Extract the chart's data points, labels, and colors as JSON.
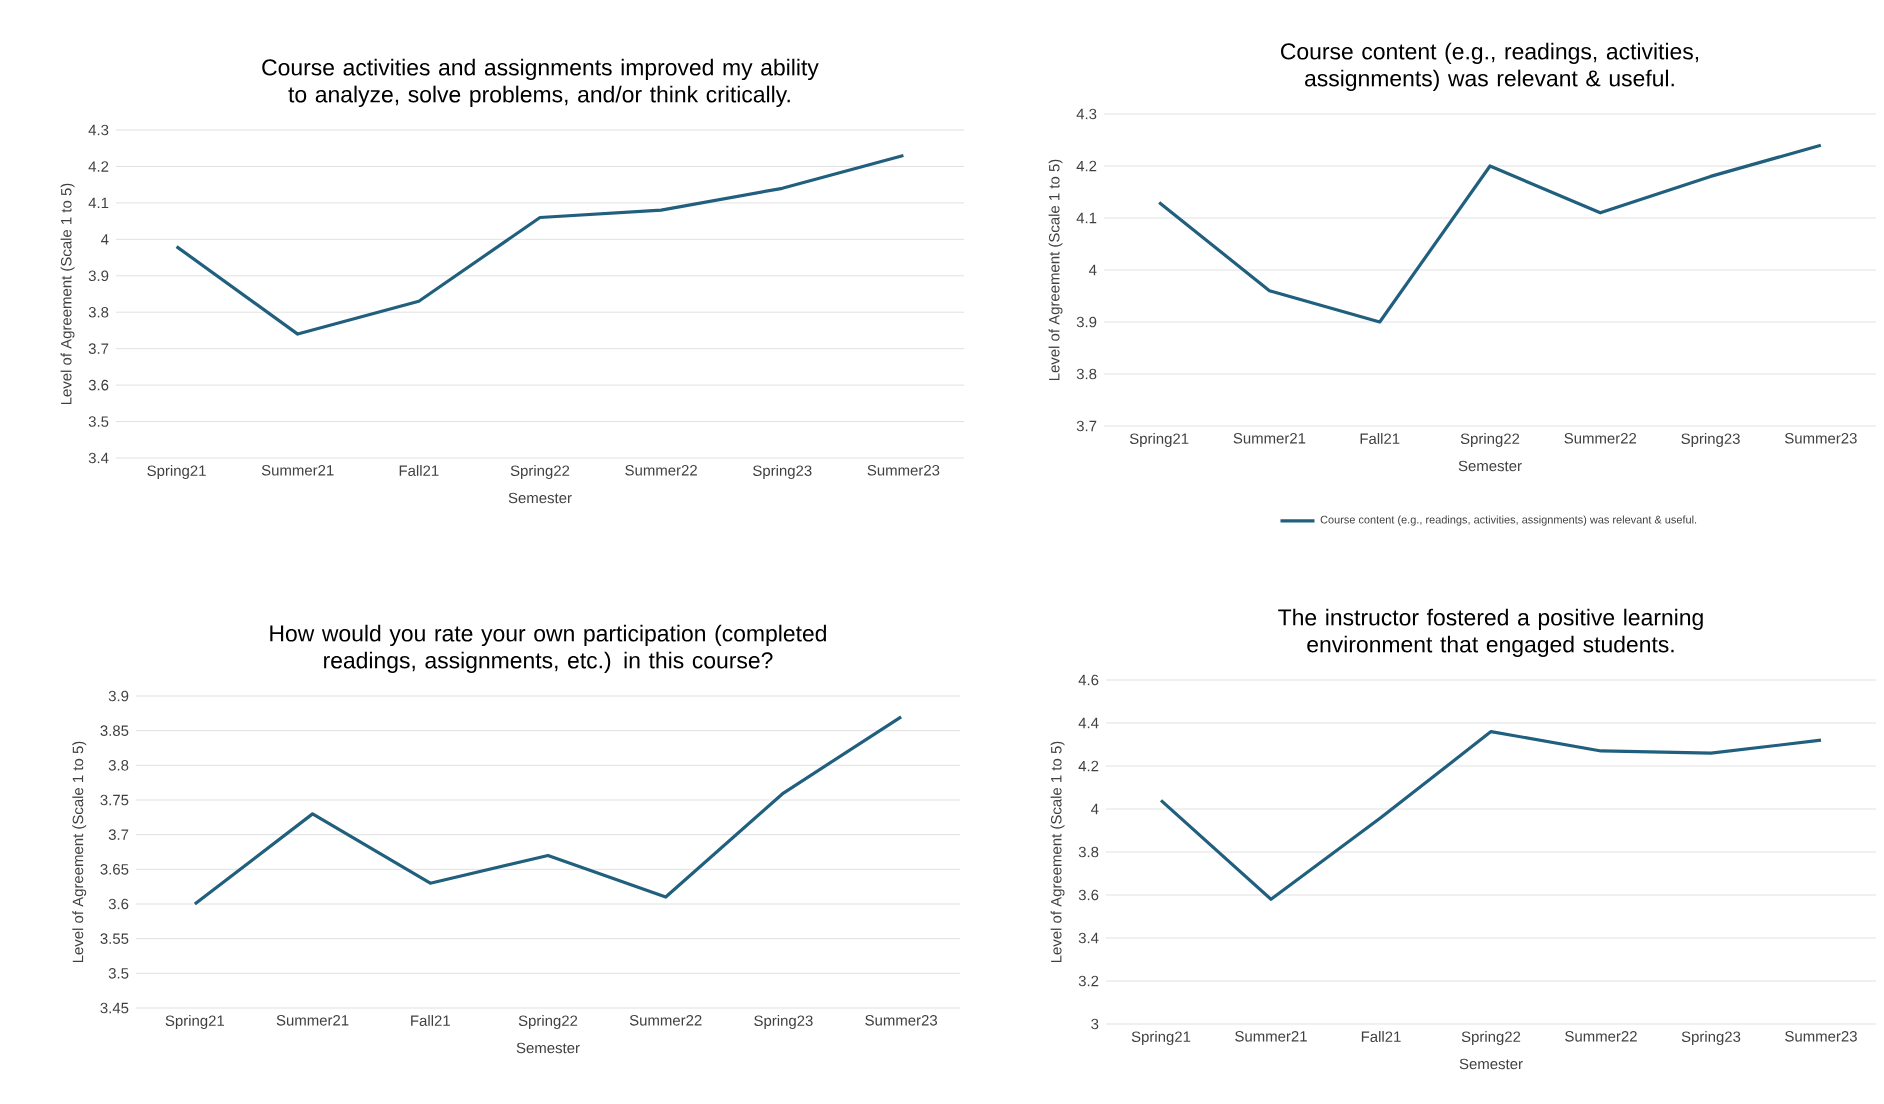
{
  "chart_data": [
    {
      "type": "line",
      "title": "Course activities and assignments improved my ability to analyze, solve problems, and/or think critically.",
      "xlabel": "Semester",
      "ylabel": "Level of Agreement (Scale 1 to 5)",
      "categories": [
        "Spring21",
        "Summer21",
        "Fall21",
        "Spring22",
        "Summer22",
        "Spring23",
        "Summer23"
      ],
      "series": [
        {
          "color": "#215f7e",
          "values": [
            3.98,
            3.74,
            3.83,
            4.06,
            4.08,
            4.14,
            4.23
          ]
        }
      ],
      "ylim": [
        3.4,
        4.3
      ],
      "yticks": [
        3.4,
        3.5,
        3.6,
        3.7,
        3.8,
        3.9,
        4,
        4.1,
        4.2,
        4.3
      ],
      "grid": "y"
    },
    {
      "type": "line",
      "title": "Course content (e.g., readings, activities, assignments) was relevant & useful.",
      "xlabel": "Semester",
      "ylabel": "Level of Agreement (Scale 1 to 5)",
      "categories": [
        "Spring21",
        "Summer21",
        "Fall21",
        "Spring22",
        "Summer22",
        "Spring23",
        "Summer23"
      ],
      "series": [
        {
          "name": "Course content (e.g., readings, activities, assignments) was relevant & useful.",
          "color": "#215f7e",
          "values": [
            4.13,
            3.96,
            3.9,
            4.2,
            4.11,
            4.18,
            4.24
          ]
        }
      ],
      "ylim": [
        3.7,
        4.3
      ],
      "yticks": [
        3.7,
        3.8,
        3.9,
        4,
        4.1,
        4.2,
        4.3
      ],
      "grid": "y",
      "legend": "bottom"
    },
    {
      "type": "line",
      "title": "How would you rate your own participation (completed readings, assignments, etc.) in this course?",
      "xlabel": "Semester",
      "ylabel": "Level of Agreement (Scale 1 to 5)",
      "categories": [
        "Spring21",
        "Summer21",
        "Fall21",
        "Spring22",
        "Summer22",
        "Spring23",
        "Summer23"
      ],
      "series": [
        {
          "color": "#215f7e",
          "values": [
            3.6,
            3.73,
            3.63,
            3.67,
            3.61,
            3.76,
            3.87
          ]
        }
      ],
      "ylim": [
        3.45,
        3.9
      ],
      "yticks": [
        3.45,
        3.5,
        3.55,
        3.6,
        3.65,
        3.7,
        3.75,
        3.8,
        3.85,
        3.9
      ],
      "grid": "y"
    },
    {
      "type": "line",
      "title": "The instructor fostered a positive learning environment that engaged students.",
      "xlabel": "Semester",
      "ylabel": "Level of Agreement (Scale 1 to 5)",
      "categories": [
        "Spring21",
        "Summer21",
        "Fall21",
        "Spring22",
        "Summer22",
        "Spring23",
        "Summer23"
      ],
      "series": [
        {
          "color": "#215f7e",
          "values": [
            4.04,
            3.58,
            3.96,
            4.36,
            4.27,
            4.26,
            4.32
          ]
        }
      ],
      "ylim": [
        3,
        4.6
      ],
      "yticks": [
        3,
        3.2,
        3.4,
        3.6,
        3.8,
        4,
        4.2,
        4.4,
        4.6
      ],
      "grid": "y"
    }
  ]
}
